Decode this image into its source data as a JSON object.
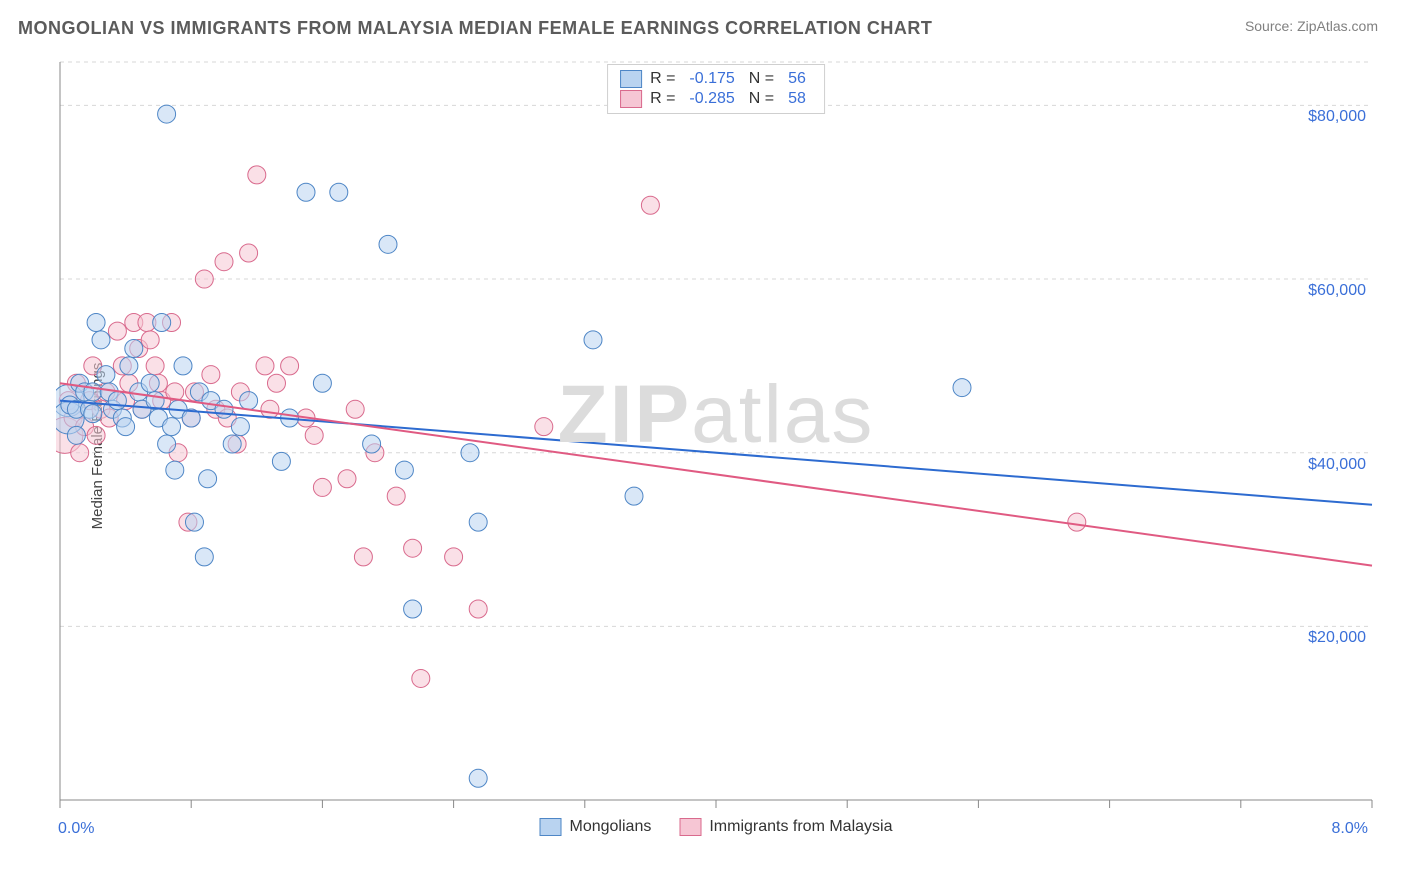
{
  "title": "MONGOLIAN VS IMMIGRANTS FROM MALAYSIA MEDIAN FEMALE EARNINGS CORRELATION CHART",
  "source": "Source: ZipAtlas.com",
  "watermark": "ZIPatlas",
  "chart": {
    "type": "scatter",
    "ylabel": "Median Female Earnings",
    "xlim": [
      0.0,
      8.0
    ],
    "ylim": [
      0,
      85000
    ],
    "xtick_min_label": "0.0%",
    "xtick_max_label": "8.0%",
    "xtick_positions": [
      0.0,
      0.8,
      1.6,
      2.4,
      3.2,
      4.0,
      4.8,
      5.6,
      6.4,
      7.2,
      8.0
    ],
    "yticks": [
      20000,
      40000,
      60000,
      80000
    ],
    "ytick_labels": [
      "$20,000",
      "$40,000",
      "$60,000",
      "$80,000"
    ],
    "grid_color": "#d7d7d7",
    "axis_color": "#888888",
    "background_color": "#ffffff",
    "marker_radius": 9,
    "marker_radius_large": 16,
    "line_width": 2,
    "series": [
      {
        "name": "Mongolians",
        "fill": "#b9d3f0",
        "stroke": "#4e86c6",
        "fill_opacity": 0.55,
        "trend": {
          "x0": 0.0,
          "y0": 46000,
          "x1": 8.0,
          "y1": 34000,
          "color": "#2d6bd0"
        },
        "R_label": "R =",
        "R_value": "-0.175",
        "N_label": "N =",
        "N_value": "56",
        "points": [
          {
            "x": 0.05,
            "y": 46000,
            "r": 16
          },
          {
            "x": 0.05,
            "y": 44000,
            "r": 16
          },
          {
            "x": 0.06,
            "y": 45500
          },
          {
            "x": 0.1,
            "y": 42000
          },
          {
            "x": 0.1,
            "y": 45000
          },
          {
            "x": 0.12,
            "y": 48000
          },
          {
            "x": 0.15,
            "y": 47000
          },
          {
            "x": 0.18,
            "y": 45000
          },
          {
            "x": 0.2,
            "y": 47000
          },
          {
            "x": 0.2,
            "y": 44500
          },
          {
            "x": 0.22,
            "y": 55000
          },
          {
            "x": 0.25,
            "y": 53000
          },
          {
            "x": 0.28,
            "y": 49000
          },
          {
            "x": 0.3,
            "y": 47000
          },
          {
            "x": 0.32,
            "y": 45000
          },
          {
            "x": 0.35,
            "y": 46000
          },
          {
            "x": 0.38,
            "y": 44000
          },
          {
            "x": 0.4,
            "y": 43000
          },
          {
            "x": 0.42,
            "y": 50000
          },
          {
            "x": 0.45,
            "y": 52000
          },
          {
            "x": 0.48,
            "y": 47000
          },
          {
            "x": 0.5,
            "y": 45000
          },
          {
            "x": 0.55,
            "y": 48000
          },
          {
            "x": 0.58,
            "y": 46000
          },
          {
            "x": 0.6,
            "y": 44000
          },
          {
            "x": 0.62,
            "y": 55000
          },
          {
            "x": 0.65,
            "y": 41000
          },
          {
            "x": 0.68,
            "y": 43000
          },
          {
            "x": 0.7,
            "y": 38000
          },
          {
            "x": 0.72,
            "y": 45000
          },
          {
            "x": 0.75,
            "y": 50000
          },
          {
            "x": 0.8,
            "y": 44000
          },
          {
            "x": 0.82,
            "y": 32000
          },
          {
            "x": 0.85,
            "y": 47000
          },
          {
            "x": 0.88,
            "y": 28000
          },
          {
            "x": 0.9,
            "y": 37000
          },
          {
            "x": 0.92,
            "y": 46000
          },
          {
            "x": 0.65,
            "y": 79000
          },
          {
            "x": 1.0,
            "y": 45000
          },
          {
            "x": 1.05,
            "y": 41000
          },
          {
            "x": 1.1,
            "y": 43000
          },
          {
            "x": 1.15,
            "y": 46000
          },
          {
            "x": 1.35,
            "y": 39000
          },
          {
            "x": 1.4,
            "y": 44000
          },
          {
            "x": 1.5,
            "y": 70000
          },
          {
            "x": 1.6,
            "y": 48000
          },
          {
            "x": 1.7,
            "y": 70000
          },
          {
            "x": 1.9,
            "y": 41000
          },
          {
            "x": 2.0,
            "y": 64000
          },
          {
            "x": 2.1,
            "y": 38000
          },
          {
            "x": 2.15,
            "y": 22000
          },
          {
            "x": 2.5,
            "y": 40000
          },
          {
            "x": 2.55,
            "y": 32000
          },
          {
            "x": 2.55,
            "y": 2500
          },
          {
            "x": 3.25,
            "y": 53000
          },
          {
            "x": 3.5,
            "y": 35000
          },
          {
            "x": 5.5,
            "y": 47500
          }
        ]
      },
      {
        "name": "Immigrants from Malaysia",
        "fill": "#f6c6d4",
        "stroke": "#d96a8d",
        "fill_opacity": 0.55,
        "trend": {
          "x0": 0.0,
          "y0": 48000,
          "x1": 8.0,
          "y1": 27000,
          "color": "#e05a82"
        },
        "R_label": "R =",
        "R_value": "-0.285",
        "N_label": "N =",
        "N_value": "58",
        "points": [
          {
            "x": 0.03,
            "y": 42000,
            "r": 18
          },
          {
            "x": 0.05,
            "y": 46000
          },
          {
            "x": 0.08,
            "y": 44000
          },
          {
            "x": 0.1,
            "y": 48000
          },
          {
            "x": 0.12,
            "y": 40000
          },
          {
            "x": 0.15,
            "y": 43000
          },
          {
            "x": 0.18,
            "y": 46000
          },
          {
            "x": 0.2,
            "y": 50000
          },
          {
            "x": 0.22,
            "y": 42000
          },
          {
            "x": 0.25,
            "y": 45000
          },
          {
            "x": 0.28,
            "y": 47000
          },
          {
            "x": 0.3,
            "y": 44000
          },
          {
            "x": 0.35,
            "y": 54000
          },
          {
            "x": 0.38,
            "y": 50000
          },
          {
            "x": 0.4,
            "y": 46000
          },
          {
            "x": 0.42,
            "y": 48000
          },
          {
            "x": 0.45,
            "y": 55000
          },
          {
            "x": 0.48,
            "y": 52000
          },
          {
            "x": 0.5,
            "y": 45000
          },
          {
            "x": 0.53,
            "y": 55000
          },
          {
            "x": 0.55,
            "y": 53000
          },
          {
            "x": 0.58,
            "y": 50000
          },
          {
            "x": 0.6,
            "y": 48000
          },
          {
            "x": 0.62,
            "y": 46000
          },
          {
            "x": 0.68,
            "y": 55000
          },
          {
            "x": 0.7,
            "y": 47000
          },
          {
            "x": 0.72,
            "y": 40000
          },
          {
            "x": 0.78,
            "y": 32000
          },
          {
            "x": 0.8,
            "y": 44000
          },
          {
            "x": 0.82,
            "y": 47000
          },
          {
            "x": 0.88,
            "y": 60000
          },
          {
            "x": 0.92,
            "y": 49000
          },
          {
            "x": 0.95,
            "y": 45000
          },
          {
            "x": 1.0,
            "y": 62000
          },
          {
            "x": 1.02,
            "y": 44000
          },
          {
            "x": 1.08,
            "y": 41000
          },
          {
            "x": 1.1,
            "y": 47000
          },
          {
            "x": 1.15,
            "y": 63000
          },
          {
            "x": 1.2,
            "y": 72000
          },
          {
            "x": 1.25,
            "y": 50000
          },
          {
            "x": 1.28,
            "y": 45000
          },
          {
            "x": 1.32,
            "y": 48000
          },
          {
            "x": 1.4,
            "y": 50000
          },
          {
            "x": 1.5,
            "y": 44000
          },
          {
            "x": 1.55,
            "y": 42000
          },
          {
            "x": 1.6,
            "y": 36000
          },
          {
            "x": 1.75,
            "y": 37000
          },
          {
            "x": 1.8,
            "y": 45000
          },
          {
            "x": 1.85,
            "y": 28000
          },
          {
            "x": 1.92,
            "y": 40000
          },
          {
            "x": 2.05,
            "y": 35000
          },
          {
            "x": 2.15,
            "y": 29000
          },
          {
            "x": 2.2,
            "y": 14000
          },
          {
            "x": 2.4,
            "y": 28000
          },
          {
            "x": 2.55,
            "y": 22000
          },
          {
            "x": 2.95,
            "y": 43000
          },
          {
            "x": 3.6,
            "y": 68500
          },
          {
            "x": 6.2,
            "y": 32000
          }
        ]
      }
    ]
  }
}
